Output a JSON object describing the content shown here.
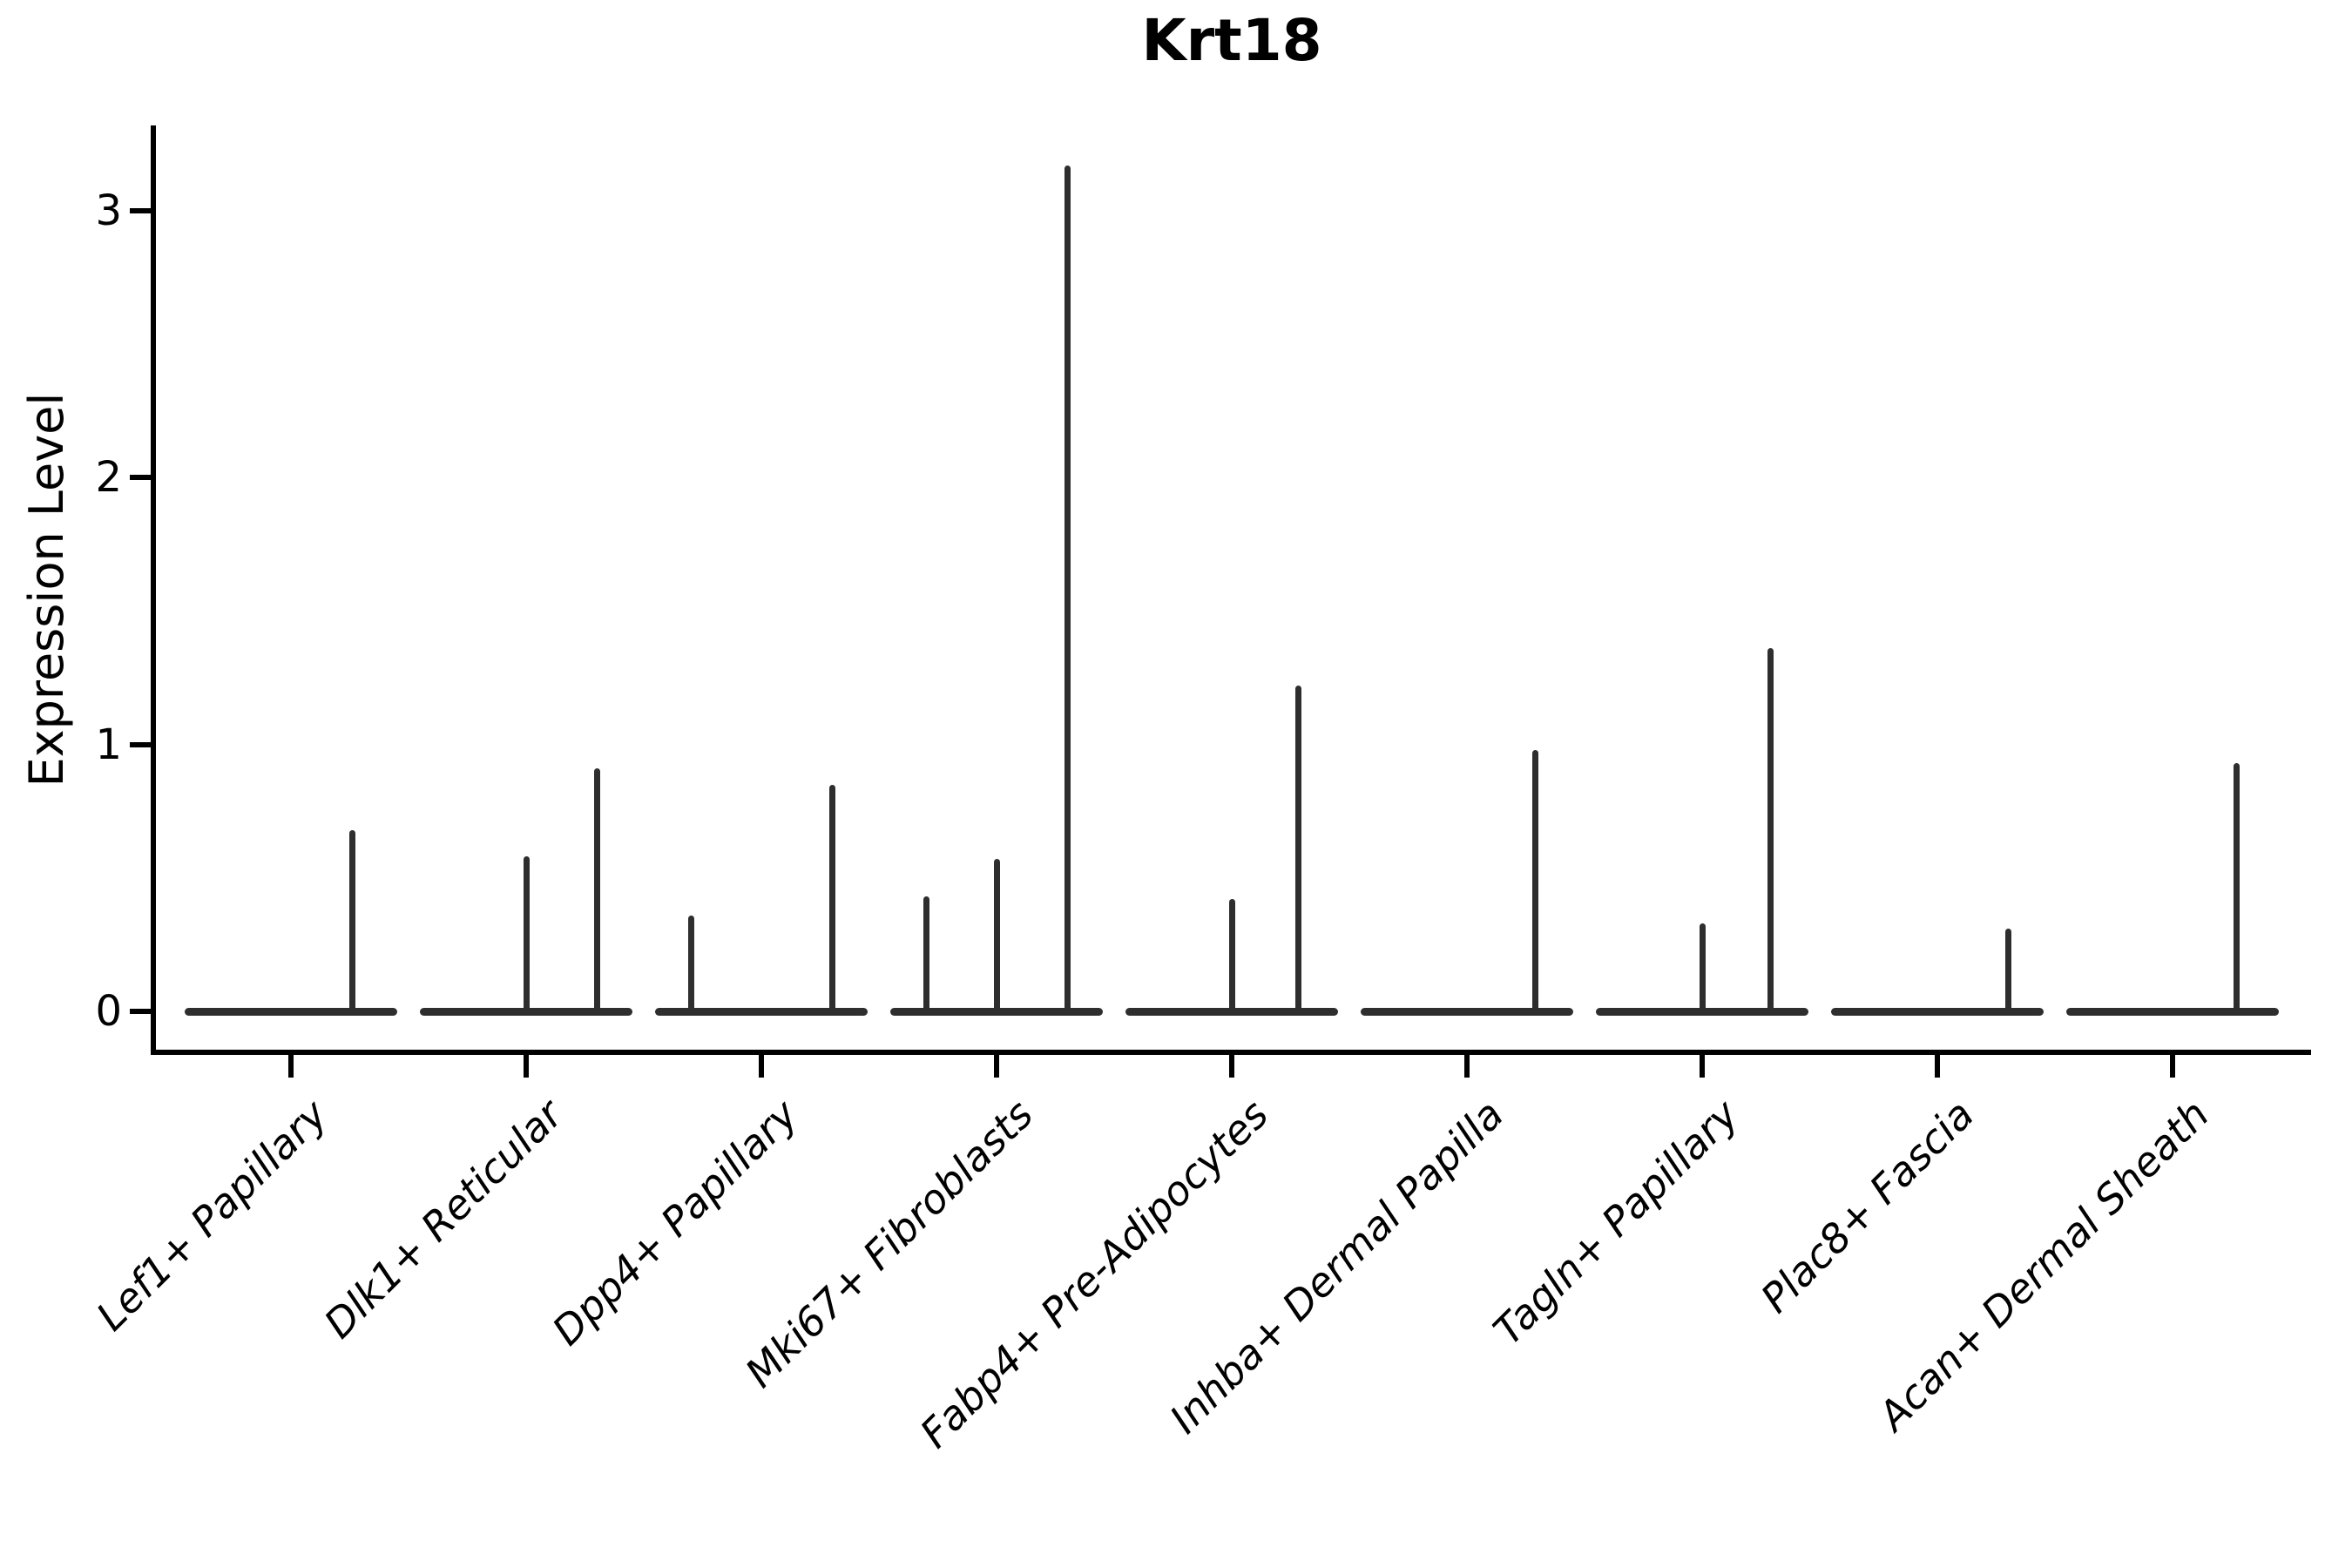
{
  "title": "Krt18",
  "y_axis": {
    "label": "Expression Level",
    "ticks": [
      "0",
      "1",
      "2",
      "3"
    ]
  },
  "chart_data": {
    "type": "violin",
    "title": "Krt18",
    "xlabel": "",
    "ylabel": "Expression Level",
    "yticks": [
      0,
      1,
      2,
      3
    ],
    "ylim": [
      -0.15,
      3.32
    ],
    "grid": false,
    "legend": "none",
    "background": "#ffffff",
    "colors": {
      "violin_stroke": "#2e2e2e",
      "axis": "#000000",
      "text": "#000000"
    },
    "categories": [
      "Lef1+ Papillary",
      "Dlk1+ Reticular",
      "Dpp4+ Papillary",
      "Mki67+ Fibroblasts",
      "Fabp4+ Pre-Adipocytes",
      "Inhba+ Dermal Papilla",
      "Tagln+ Papillary",
      "Plac8+ Fascia",
      "Acan+ Dermal Sheath"
    ],
    "note": "Violins are flattened at expression 0 (nearly all cells zero) with thin vertical density spikes for rare expressing cells; spike offset_frac is the horizontal position within the category slot (fraction of slot width from center).",
    "violins": [
      {
        "category": "Lef1+ Papillary",
        "baseline_value": 0,
        "spikes": [
          {
            "value": 0.68,
            "offset_frac": 0.26
          }
        ]
      },
      {
        "category": "Dlk1+ Reticular",
        "baseline_value": 0,
        "spikes": [
          {
            "value": 0.58,
            "offset_frac": 0.0
          },
          {
            "value": 0.91,
            "offset_frac": 0.3
          }
        ]
      },
      {
        "category": "Dpp4+ Papillary",
        "baseline_value": 0,
        "spikes": [
          {
            "value": 0.36,
            "offset_frac": -0.3
          },
          {
            "value": 0.85,
            "offset_frac": 0.3
          }
        ]
      },
      {
        "category": "Mki67+ Fibroblasts",
        "baseline_value": 0,
        "spikes": [
          {
            "value": 0.43,
            "offset_frac": -0.3
          },
          {
            "value": 0.57,
            "offset_frac": 0.0
          },
          {
            "value": 3.17,
            "offset_frac": 0.3
          }
        ]
      },
      {
        "category": "Fabp4+ Pre-Adipocytes",
        "baseline_value": 0,
        "spikes": [
          {
            "value": 0.42,
            "offset_frac": 0.0
          },
          {
            "value": 1.22,
            "offset_frac": 0.28
          }
        ]
      },
      {
        "category": "Inhba+ Dermal Papilla",
        "baseline_value": 0,
        "spikes": [
          {
            "value": 0.98,
            "offset_frac": 0.29
          }
        ]
      },
      {
        "category": "Tagln+ Papillary",
        "baseline_value": 0,
        "spikes": [
          {
            "value": 0.33,
            "offset_frac": 0.0
          },
          {
            "value": 1.36,
            "offset_frac": 0.29
          }
        ]
      },
      {
        "category": "Plac8+ Fascia",
        "baseline_value": 0,
        "spikes": [
          {
            "value": 0.31,
            "offset_frac": 0.3
          }
        ]
      },
      {
        "category": "Acan+ Dermal Sheath",
        "baseline_value": 0,
        "spikes": [
          {
            "value": 0.93,
            "offset_frac": 0.27
          }
        ]
      }
    ]
  }
}
